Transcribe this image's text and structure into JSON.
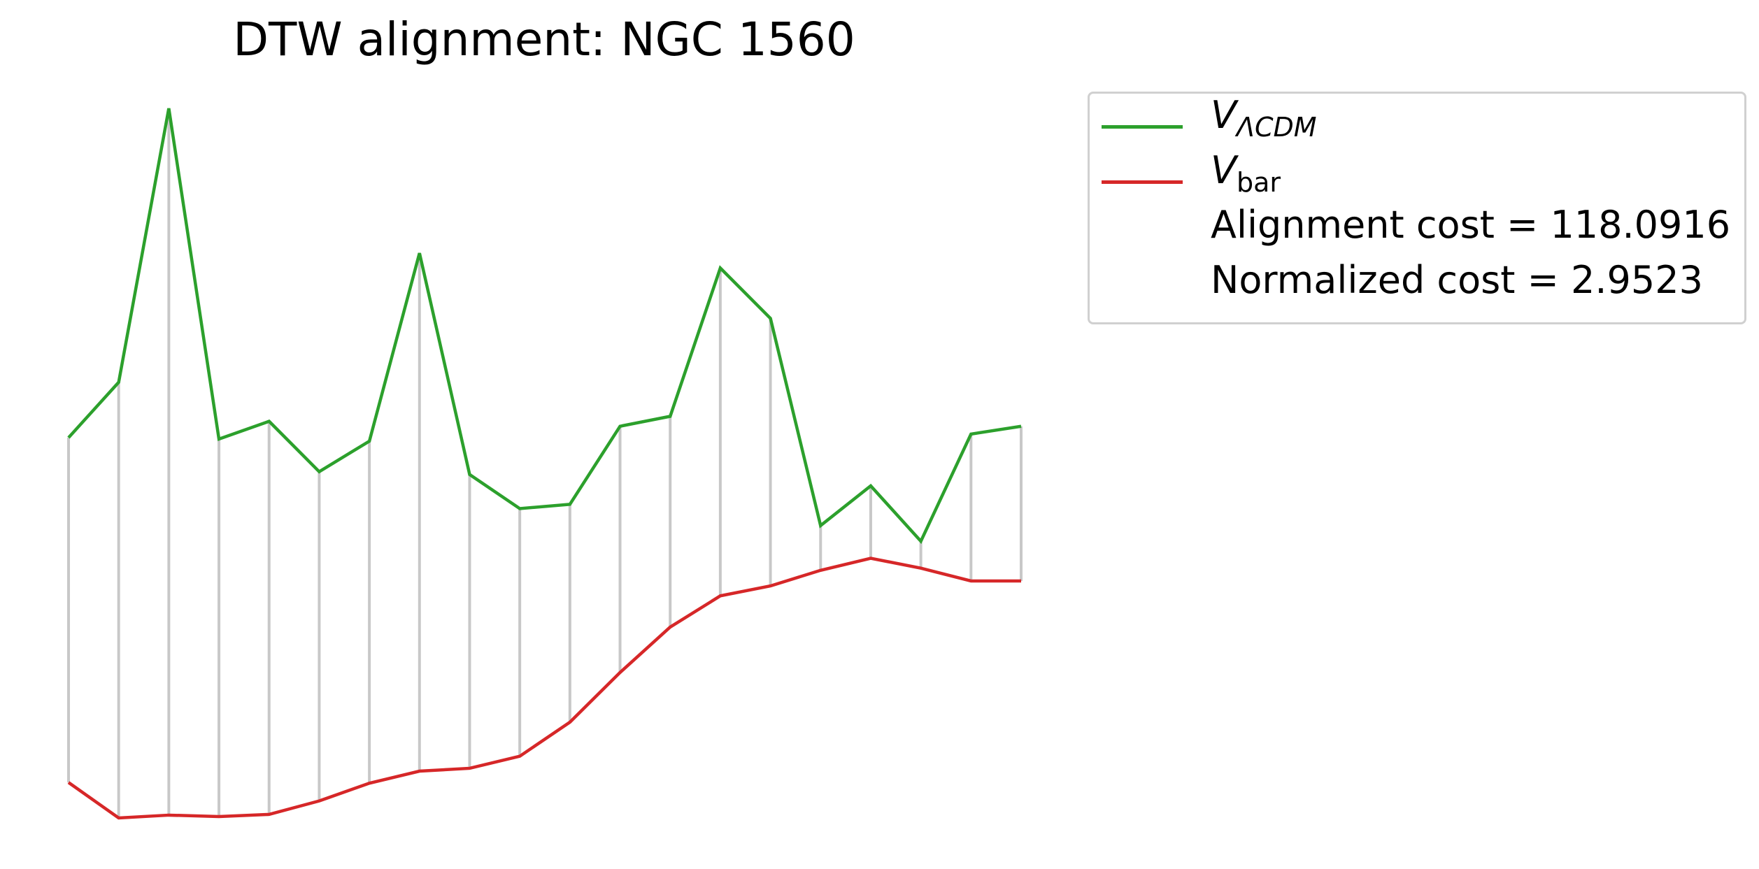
{
  "chart_data": {
    "type": "line",
    "title": "DTW alignment: NGC 1560",
    "xlabel": "",
    "ylabel": "",
    "axes_visible": false,
    "grid": false,
    "legend_placement": "outside-top-right",
    "x": [
      0,
      1,
      2,
      3,
      4,
      5,
      6,
      7,
      8,
      9,
      10,
      11,
      12,
      13,
      14,
      15,
      16,
      17,
      18,
      19
    ],
    "series": [
      {
        "key": "lcdm",
        "name": "V_ΛCDM",
        "name_main": "V",
        "name_sub": "ΛCDM",
        "color": "#2ca02c",
        "values": [
          0.536,
          0.614,
          1.0,
          0.534,
          0.559,
          0.488,
          0.531,
          0.796,
          0.484,
          0.436,
          0.442,
          0.552,
          0.566,
          0.775,
          0.704,
          0.412,
          0.468,
          0.39,
          0.541,
          0.552
        ]
      },
      {
        "key": "vbar",
        "name": "V_bar",
        "name_main": "V",
        "name_sub": "bar",
        "color": "#d62728",
        "values": [
          0.05,
          0.0,
          0.004,
          0.002,
          0.005,
          0.024,
          0.049,
          0.066,
          0.07,
          0.087,
          0.135,
          0.205,
          0.269,
          0.313,
          0.327,
          0.349,
          0.366,
          0.352,
          0.334,
          0.334
        ]
      }
    ],
    "alignment": {
      "pairs": [
        [
          0,
          0
        ],
        [
          1,
          1
        ],
        [
          2,
          2
        ],
        [
          3,
          3
        ],
        [
          4,
          4
        ],
        [
          5,
          5
        ],
        [
          6,
          6
        ],
        [
          7,
          7
        ],
        [
          8,
          8
        ],
        [
          9,
          9
        ],
        [
          10,
          10
        ],
        [
          11,
          11
        ],
        [
          12,
          12
        ],
        [
          13,
          13
        ],
        [
          14,
          14
        ],
        [
          15,
          15
        ],
        [
          16,
          16
        ],
        [
          17,
          17
        ],
        [
          18,
          18
        ],
        [
          19,
          19
        ]
      ],
      "line_color": "#c8c8c8"
    },
    "legend": {
      "alignment_cost_text": "Alignment cost = 118.0916",
      "normalized_cost_text": "Normalized cost = 2.9523"
    }
  }
}
